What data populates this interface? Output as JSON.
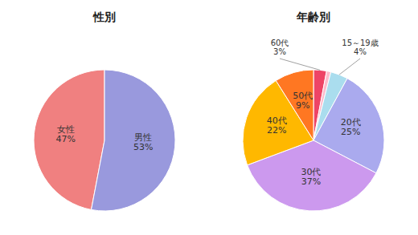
{
  "chart_data": [
    {
      "type": "pie",
      "title": "性別",
      "categories": [
        "女性",
        "男性"
      ],
      "values": [
        47,
        53
      ],
      "value_labels": [
        "47%",
        "53%"
      ],
      "colors": [
        "#F08080",
        "#9999DD"
      ],
      "data_labels": true
    },
    {
      "type": "pie",
      "title": "年齢別",
      "categories": [
        "60代",
        null,
        "15～19歳",
        "20代",
        "30代",
        "40代",
        "50代"
      ],
      "values": [
        3,
        1,
        4,
        25,
        37,
        22,
        9
      ],
      "value_labels": [
        "3%",
        null,
        "4%",
        "25%",
        "37%",
        "22%",
        "9%"
      ],
      "colors": [
        "#EE4466",
        "#FFBBCC",
        "#AADDEE",
        "#AAAAEE",
        "#CC99EE",
        "#FFB800",
        "#FF7722"
      ],
      "data_labels": true
    }
  ]
}
